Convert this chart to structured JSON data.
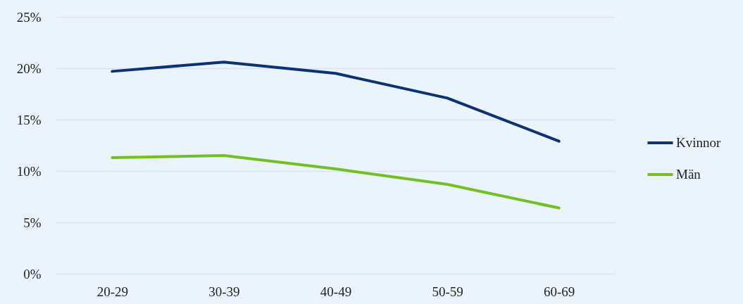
{
  "chart_data": {
    "type": "line",
    "categories": [
      "20-29",
      "30-39",
      "40-49",
      "50-59",
      "60-69"
    ],
    "series": [
      {
        "name": "Kvinnor",
        "color": "#0b3373",
        "values": [
          19.7,
          20.6,
          19.5,
          17.1,
          12.9
        ]
      },
      {
        "name": "Män",
        "color": "#72bf26",
        "values": [
          11.3,
          11.5,
          10.2,
          8.7,
          6.4
        ]
      }
    ],
    "ylim": [
      0,
      25
    ],
    "yticks": [
      {
        "value": 0,
        "label": "0%"
      },
      {
        "value": 5,
        "label": "5%"
      },
      {
        "value": 10,
        "label": "10%"
      },
      {
        "value": 15,
        "label": "15%"
      },
      {
        "value": 20,
        "label": "20%"
      },
      {
        "value": 25,
        "label": "25%"
      }
    ],
    "grid": "y",
    "legend": "right",
    "marker": "none",
    "line_style": "solid"
  }
}
